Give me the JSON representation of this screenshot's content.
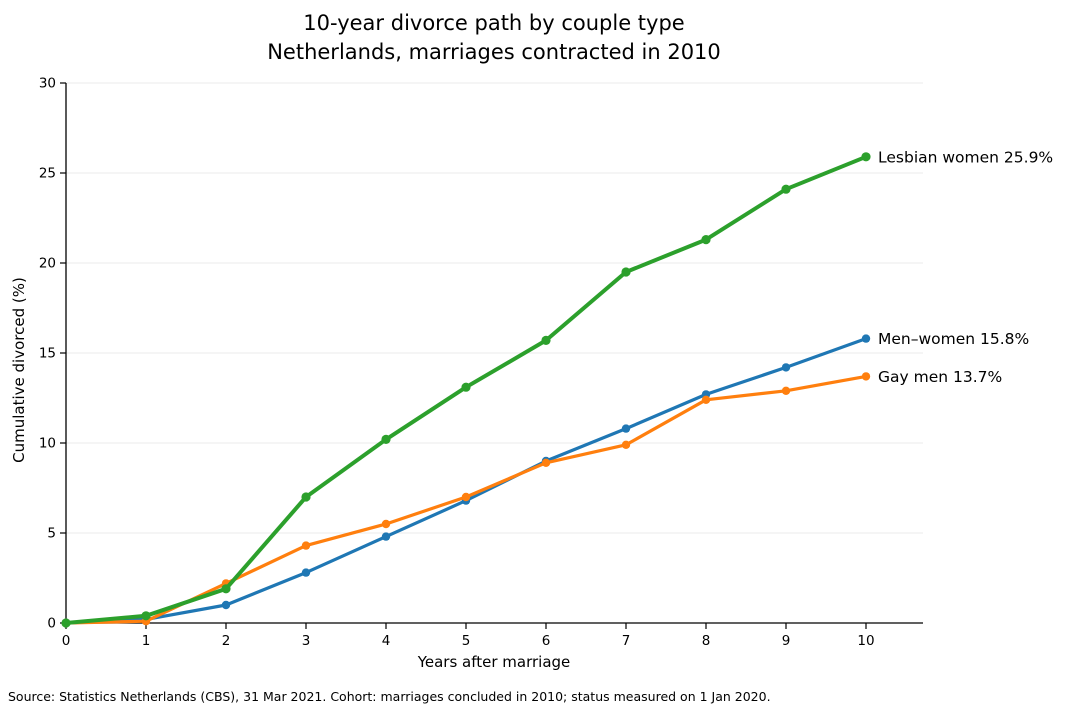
{
  "title": {
    "line1": "10-year divorce path by couple type",
    "line2": "Netherlands, marriages contracted in 2010"
  },
  "footer": "Source: Statistics Netherlands (CBS), 31 Mar 2021. Cohort: marriages concluded in 2010; status measured on 1 Jan 2020.",
  "chart_data": {
    "type": "line",
    "title": "10-year divorce path by couple type\nNetherlands, marriages contracted in 2010",
    "xlabel": "Years after marriage",
    "ylabel": "Cumulative divorced (%)",
    "x": [
      0,
      1,
      2,
      3,
      4,
      5,
      6,
      7,
      8,
      9,
      10
    ],
    "xticks": [
      "0",
      "1",
      "2",
      "3",
      "4",
      "5",
      "6",
      "7",
      "8",
      "9",
      "10"
    ],
    "yticks": [
      0,
      5,
      10,
      15,
      20,
      25,
      30
    ],
    "xlim": [
      0,
      10.7
    ],
    "ylim": [
      0,
      30
    ],
    "grid": "horizontal-only",
    "grid_color": "#ebebeb",
    "legend_position": "end-of-line-labels",
    "series": [
      {
        "name": "Men–women",
        "color": "#1f77b4",
        "line_width": 3.2,
        "values": [
          0.0,
          0.2,
          1.0,
          2.8,
          4.8,
          6.8,
          9.0,
          10.8,
          12.7,
          14.2,
          15.8
        ],
        "end_label": "Men–women 15.8%",
        "final_value": "15.8%"
      },
      {
        "name": "Gay men",
        "color": "#ff7f0e",
        "line_width": 3.2,
        "values": [
          0.0,
          0.1,
          2.2,
          4.3,
          5.5,
          7.0,
          8.9,
          9.9,
          12.4,
          12.9,
          13.7
        ],
        "end_label": "Gay men 13.7%",
        "final_value": "13.7%"
      },
      {
        "name": "Lesbian women",
        "color": "#2ca02c",
        "line_width": 4.0,
        "values": [
          0.0,
          0.4,
          1.9,
          7.0,
          10.2,
          13.1,
          15.7,
          19.5,
          21.3,
          24.1,
          25.9
        ],
        "end_label": "Lesbian women 25.9%",
        "final_value": "25.9%"
      }
    ]
  }
}
